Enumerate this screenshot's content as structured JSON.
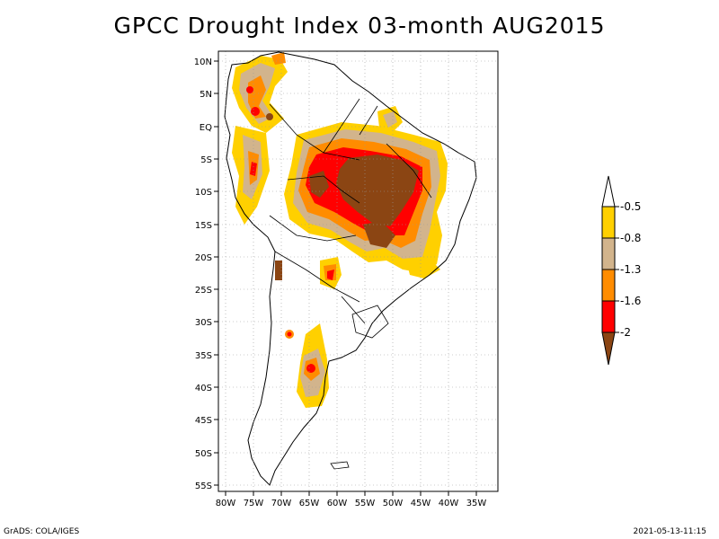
{
  "title": "GPCC Drought Index 03-month AUG2015",
  "map": {
    "region": "South America",
    "lat_ticks": [
      "10N",
      "5N",
      "EQ",
      "5S",
      "10S",
      "15S",
      "20S",
      "25S",
      "30S",
      "35S",
      "40S",
      "45S",
      "50S",
      "55S"
    ],
    "lon_ticks": [
      "80W",
      "75W",
      "70W",
      "65W",
      "60W",
      "55W",
      "50W",
      "45W",
      "40W",
      "35W"
    ]
  },
  "legend": {
    "labels": [
      "-0.5",
      "-0.8",
      "-1.3",
      "-1.6",
      "-2"
    ],
    "colors": [
      "#ffffff",
      "#ffd000",
      "#d2b48c",
      "#ff8c00",
      "#ff0000",
      "#8b4513"
    ]
  },
  "footer": {
    "left": "GrADS: COLA/IGES",
    "right": "2021-05-13-11:15"
  }
}
